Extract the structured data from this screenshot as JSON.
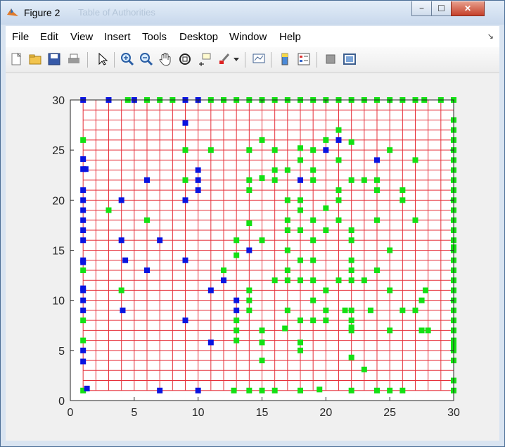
{
  "window": {
    "title": "Figure 2",
    "ghost_title": "Table of Authorities"
  },
  "window_buttons": {
    "minimize": "−",
    "maximize": "☐",
    "close": "✕"
  },
  "menu": [
    {
      "label": "File"
    },
    {
      "label": "Edit"
    },
    {
      "label": "View"
    },
    {
      "label": "Insert"
    },
    {
      "label": "Tools"
    },
    {
      "label": "Desktop"
    },
    {
      "label": "Window"
    },
    {
      "label": "Help"
    }
  ],
  "toolbar": [
    {
      "name": "new-figure-icon"
    },
    {
      "name": "open-file-icon"
    },
    {
      "name": "save-icon"
    },
    {
      "name": "print-icon"
    },
    {
      "name": "select-arrow-icon"
    },
    {
      "name": "zoom-in-icon"
    },
    {
      "name": "zoom-out-icon"
    },
    {
      "name": "pan-hand-icon"
    },
    {
      "name": "rotate-3d-icon"
    },
    {
      "name": "data-cursor-icon"
    },
    {
      "name": "brush-icon"
    },
    {
      "name": "link-plot-icon"
    },
    {
      "name": "colorbar-icon"
    },
    {
      "name": "legend-icon"
    },
    {
      "name": "hide-plot-tools-icon"
    },
    {
      "name": "show-plot-tools-icon"
    }
  ],
  "colors": {
    "grid": "#e6303a",
    "blue": "#0a14e0",
    "green": "#14e014"
  },
  "chart_data": {
    "type": "scatter",
    "xlim": [
      0,
      30
    ],
    "ylim": [
      0,
      30
    ],
    "xticks": [
      "0",
      "5",
      "10",
      "15",
      "20",
      "25",
      "30"
    ],
    "yticks": [
      "0",
      "5",
      "10",
      "15",
      "20",
      "25",
      "30"
    ],
    "grid_lines_x": [
      1,
      2,
      3,
      4,
      5,
      6,
      7,
      8,
      9,
      10,
      11,
      12,
      13,
      14,
      15,
      16,
      17,
      18,
      19,
      20,
      21,
      22,
      23,
      24,
      25,
      26,
      27,
      28,
      29,
      30
    ],
    "grid_lines_y": [
      1,
      2,
      3,
      4,
      5,
      6,
      7,
      8,
      9,
      10,
      11,
      12,
      13,
      14,
      15,
      16,
      17,
      18,
      19,
      20,
      21,
      22,
      23,
      24,
      25,
      26,
      27,
      28,
      29,
      30
    ],
    "blue_points": [
      [
        1,
        30
      ],
      [
        3,
        30
      ],
      [
        5,
        30
      ],
      [
        9,
        30
      ],
      [
        10,
        30
      ],
      [
        9,
        27.7
      ],
      [
        1,
        24.1
      ],
      [
        1,
        23.1
      ],
      [
        1.2,
        23.1
      ],
      [
        10,
        23
      ],
      [
        6,
        22
      ],
      [
        10,
        22
      ],
      [
        4,
        20
      ],
      [
        9,
        20
      ],
      [
        10,
        21
      ],
      [
        1,
        21
      ],
      [
        1,
        20
      ],
      [
        1,
        19
      ],
      [
        1,
        18
      ],
      [
        1,
        17
      ],
      [
        1,
        16
      ],
      [
        4,
        16
      ],
      [
        7,
        16
      ],
      [
        14,
        15
      ],
      [
        1,
        14
      ],
      [
        1,
        13.8
      ],
      [
        4.3,
        14
      ],
      [
        9,
        14
      ],
      [
        6,
        13
      ],
      [
        12,
        12
      ],
      [
        11,
        11
      ],
      [
        1,
        11.2
      ],
      [
        1,
        11
      ],
      [
        1,
        10
      ],
      [
        13,
        10
      ],
      [
        1,
        9
      ],
      [
        4.1,
        9
      ],
      [
        13,
        9
      ],
      [
        9,
        8
      ],
      [
        11,
        5.8
      ],
      [
        1,
        5
      ],
      [
        1,
        3.9
      ],
      [
        1.3,
        1.2
      ],
      [
        7,
        1
      ],
      [
        10,
        1
      ],
      [
        21,
        26
      ],
      [
        20,
        25
      ],
      [
        18,
        22
      ],
      [
        24,
        24
      ]
    ],
    "green_points": [
      [
        4.5,
        30
      ],
      [
        6,
        30
      ],
      [
        7,
        30
      ],
      [
        8,
        30
      ],
      [
        11,
        30
      ],
      [
        12,
        30
      ],
      [
        13,
        30
      ],
      [
        14,
        30
      ],
      [
        15,
        30
      ],
      [
        16,
        30
      ],
      [
        17,
        30
      ],
      [
        18,
        30
      ],
      [
        19,
        30
      ],
      [
        20,
        30
      ],
      [
        21,
        30
      ],
      [
        22,
        30
      ],
      [
        23,
        30
      ],
      [
        24,
        30
      ],
      [
        25,
        30
      ],
      [
        26,
        30
      ],
      [
        27,
        30
      ],
      [
        27.7,
        30
      ],
      [
        29,
        30
      ],
      [
        30,
        30
      ],
      [
        1,
        26
      ],
      [
        9,
        25
      ],
      [
        11,
        25
      ],
      [
        14,
        25
      ],
      [
        15,
        26
      ],
      [
        16,
        25
      ],
      [
        18,
        25.2
      ],
      [
        19,
        25
      ],
      [
        20,
        26
      ],
      [
        21,
        27
      ],
      [
        22,
        25.8
      ],
      [
        21,
        24
      ],
      [
        25,
        25
      ],
      [
        27,
        24
      ],
      [
        16,
        23
      ],
      [
        17,
        23
      ],
      [
        18,
        24
      ],
      [
        19,
        23
      ],
      [
        14,
        22
      ],
      [
        15,
        22.2
      ],
      [
        16,
        22
      ],
      [
        9,
        22
      ],
      [
        19,
        22
      ],
      [
        21,
        21
      ],
      [
        22,
        22
      ],
      [
        23,
        22
      ],
      [
        24,
        22
      ],
      [
        26,
        21
      ],
      [
        26,
        20
      ],
      [
        14,
        21
      ],
      [
        17,
        20
      ],
      [
        18,
        20
      ],
      [
        20,
        19.2
      ],
      [
        21,
        20
      ],
      [
        24,
        21
      ],
      [
        3,
        19
      ],
      [
        17,
        18
      ],
      [
        18,
        19
      ],
      [
        19,
        18
      ],
      [
        21,
        18
      ],
      [
        24,
        18
      ],
      [
        27,
        18
      ],
      [
        6,
        18
      ],
      [
        14,
        17.7
      ],
      [
        17,
        17
      ],
      [
        18,
        17
      ],
      [
        20,
        17
      ],
      [
        22,
        17
      ],
      [
        13,
        16
      ],
      [
        15,
        16
      ],
      [
        19,
        16
      ],
      [
        22,
        16
      ],
      [
        25,
        15
      ],
      [
        13,
        14.5
      ],
      [
        17,
        15
      ],
      [
        18,
        14
      ],
      [
        19,
        14
      ],
      [
        22,
        14
      ],
      [
        17,
        13
      ],
      [
        22,
        13
      ],
      [
        24,
        13
      ],
      [
        12,
        13
      ],
      [
        16,
        12
      ],
      [
        17,
        12
      ],
      [
        18,
        12
      ],
      [
        19,
        12
      ],
      [
        21,
        12
      ],
      [
        22,
        12
      ],
      [
        23,
        12
      ],
      [
        1,
        13
      ],
      [
        4,
        11
      ],
      [
        14,
        11
      ],
      [
        20,
        11
      ],
      [
        25,
        11
      ],
      [
        27.8,
        11
      ],
      [
        14,
        10
      ],
      [
        19,
        10
      ],
      [
        27.5,
        10
      ],
      [
        14,
        9
      ],
      [
        17,
        9
      ],
      [
        20,
        9
      ],
      [
        21.5,
        9
      ],
      [
        22,
        9
      ],
      [
        23.5,
        9
      ],
      [
        26,
        9
      ],
      [
        27,
        9
      ],
      [
        1,
        8
      ],
      [
        13,
        8
      ],
      [
        18,
        8
      ],
      [
        19,
        8
      ],
      [
        20,
        8
      ],
      [
        22,
        8
      ],
      [
        22,
        7.3
      ],
      [
        13,
        7
      ],
      [
        15,
        7
      ],
      [
        16.8,
        7.2
      ],
      [
        22,
        7
      ],
      [
        25,
        7
      ],
      [
        27.5,
        7
      ],
      [
        28,
        7
      ],
      [
        1,
        6
      ],
      [
        13,
        6
      ],
      [
        15,
        5.8
      ],
      [
        18,
        5.8
      ],
      [
        18,
        5
      ],
      [
        15,
        4
      ],
      [
        22,
        4.3
      ],
      [
        23,
        3.1
      ],
      [
        1,
        1
      ],
      [
        12.8,
        1
      ],
      [
        14,
        1
      ],
      [
        15,
        1
      ],
      [
        16,
        1
      ],
      [
        18,
        1
      ],
      [
        19.5,
        1.1
      ],
      [
        22,
        1
      ],
      [
        24,
        1
      ],
      [
        25,
        1
      ],
      [
        26,
        1
      ],
      [
        30,
        28
      ],
      [
        30,
        27
      ],
      [
        30,
        26
      ],
      [
        30,
        25
      ],
      [
        30,
        24
      ],
      [
        30,
        23
      ],
      [
        30,
        22
      ],
      [
        30,
        21
      ],
      [
        30,
        20
      ],
      [
        30,
        19
      ],
      [
        30,
        18
      ],
      [
        30,
        17
      ],
      [
        30,
        16
      ],
      [
        30,
        15.3
      ],
      [
        30,
        15
      ],
      [
        30,
        14
      ],
      [
        30,
        13
      ],
      [
        30,
        12
      ],
      [
        30,
        11
      ],
      [
        30,
        10
      ],
      [
        30,
        9
      ],
      [
        30,
        8
      ],
      [
        30,
        7
      ],
      [
        30,
        6
      ],
      [
        30,
        5.8
      ],
      [
        30,
        5.5
      ],
      [
        30,
        5.3
      ],
      [
        30,
        5
      ],
      [
        30,
        4
      ],
      [
        30,
        2
      ],
      [
        30,
        1
      ]
    ]
  }
}
